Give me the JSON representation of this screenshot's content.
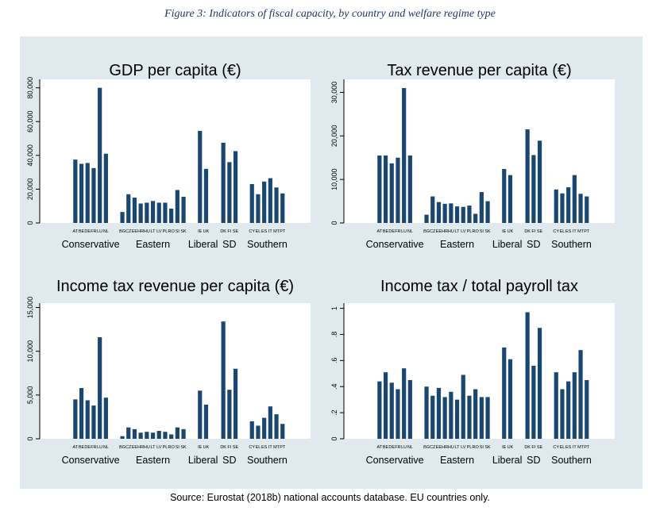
{
  "figure": {
    "title": "Figure 3: Indicators of fiscal capacity, by country and welfare regime type",
    "source": "Source: Eurostat (2018b) national accounts database. EU countries only."
  },
  "colors": {
    "bar": "#1a476f",
    "panel_bg": "#dfe9ee",
    "plot_bg": "#ffffff",
    "title": "#1f3864"
  },
  "chart_data": [
    {
      "type": "bar",
      "title": "GDP per capita (€)",
      "ylim": [
        0,
        85000
      ],
      "yticks": [
        0,
        20000,
        40000,
        60000,
        80000
      ],
      "ytick_labels": [
        "0",
        "20,000",
        "40,000",
        "60,000",
        "80,000"
      ],
      "grid": false,
      "groups": [
        {
          "name": "Conservative",
          "categories": [
            "AT",
            "BE",
            "DE",
            "FR",
            "LU",
            "NL"
          ],
          "values": [
            37500,
            35000,
            35500,
            32500,
            80000,
            41000
          ]
        },
        {
          "name": "Eastern",
          "categories": [
            "BG",
            "CZ",
            "EE",
            "HR",
            "HU",
            "LT",
            "LV",
            "PL",
            "RO",
            "SI",
            "SK"
          ],
          "values": [
            6500,
            17000,
            15000,
            11500,
            12000,
            13000,
            12000,
            12000,
            8500,
            19500,
            15500
          ]
        },
        {
          "name": "Liberal",
          "categories": [
            "IE",
            "UK"
          ],
          "values": [
            54500,
            32000
          ]
        },
        {
          "name": "SD",
          "categories": [
            "DK",
            "FI",
            "SE"
          ],
          "values": [
            47500,
            36000,
            42500
          ]
        },
        {
          "name": "Southern",
          "categories": [
            "CY",
            "EL",
            "ES",
            "IT",
            "MT",
            "PT"
          ],
          "values": [
            23000,
            17000,
            24500,
            26500,
            21000,
            17500
          ]
        }
      ]
    },
    {
      "type": "bar",
      "title": "Tax revenue per capita (€)",
      "ylim": [
        0,
        33000
      ],
      "yticks": [
        0,
        10000,
        20000,
        30000
      ],
      "ytick_labels": [
        "0",
        "10,000",
        "20,000",
        "30,000"
      ],
      "grid": false,
      "groups": [
        {
          "name": "Conservative",
          "categories": [
            "AT",
            "BE",
            "DE",
            "FR",
            "LU",
            "NL"
          ],
          "values": [
            15500,
            15500,
            13700,
            15000,
            31000,
            15500
          ]
        },
        {
          "name": "Eastern",
          "categories": [
            "BG",
            "CZ",
            "EE",
            "HR",
            "HU",
            "LT",
            "LV",
            "PL",
            "RO",
            "SI",
            "SK"
          ],
          "values": [
            1900,
            6100,
            4800,
            4400,
            4500,
            3800,
            3700,
            4000,
            2100,
            7100,
            5000
          ]
        },
        {
          "name": "Liberal",
          "categories": [
            "IE",
            "UK"
          ],
          "values": [
            12400,
            11000
          ]
        },
        {
          "name": "SD",
          "categories": [
            "DK",
            "FI",
            "SE"
          ],
          "values": [
            21500,
            15600,
            18900
          ]
        },
        {
          "name": "Southern",
          "categories": [
            "CY",
            "EL",
            "ES",
            "IT",
            "MT",
            "PT"
          ],
          "values": [
            7700,
            6800,
            8200,
            11000,
            6700,
            6100
          ]
        }
      ]
    },
    {
      "type": "bar",
      "title": "Income tax revenue per capita (€)",
      "ylim": [
        0,
        15500
      ],
      "yticks": [
        0,
        5000,
        10000,
        15000
      ],
      "ytick_labels": [
        "0",
        "5,000",
        "10,000",
        "15,000"
      ],
      "grid": false,
      "groups": [
        {
          "name": "Conservative",
          "categories": [
            "AT",
            "BE",
            "DE",
            "FR",
            "LU",
            "NL"
          ],
          "values": [
            4500,
            5800,
            4400,
            3800,
            11600,
            4700
          ]
        },
        {
          "name": "Eastern",
          "categories": [
            "BG",
            "CZ",
            "EE",
            "HR",
            "HU",
            "LT",
            "LV",
            "PL",
            "RO",
            "SI",
            "SK"
          ],
          "values": [
            300,
            1300,
            1100,
            700,
            800,
            700,
            900,
            800,
            500,
            1300,
            1100
          ]
        },
        {
          "name": "Liberal",
          "categories": [
            "IE",
            "UK"
          ],
          "values": [
            5500,
            3900
          ]
        },
        {
          "name": "SD",
          "categories": [
            "DK",
            "FI",
            "SE"
          ],
          "values": [
            13400,
            5600,
            8000
          ]
        },
        {
          "name": "Southern",
          "categories": [
            "CY",
            "EL",
            "ES",
            "IT",
            "MT",
            "PT"
          ],
          "values": [
            2000,
            1500,
            2400,
            3700,
            2800,
            1700
          ]
        }
      ]
    },
    {
      "type": "bar",
      "title": "Income tax / total payroll tax",
      "ylim": [
        0,
        1.04
      ],
      "yticks": [
        0,
        0.2,
        0.4,
        0.6,
        0.8,
        1
      ],
      "ytick_labels": [
        "0",
        ".2",
        ".4",
        ".6",
        ".8",
        "1"
      ],
      "grid": false,
      "groups": [
        {
          "name": "Conservative",
          "categories": [
            "AT",
            "BE",
            "DE",
            "FR",
            "LU",
            "NL"
          ],
          "values": [
            0.44,
            0.51,
            0.43,
            0.38,
            0.54,
            0.45
          ]
        },
        {
          "name": "Eastern",
          "categories": [
            "BG",
            "CZ",
            "EE",
            "HR",
            "HU",
            "LT",
            "LV",
            "PL",
            "RO",
            "SI",
            "SK"
          ],
          "values": [
            0.4,
            0.33,
            0.39,
            0.32,
            0.36,
            0.3,
            0.49,
            0.33,
            0.38,
            0.32,
            0.32
          ]
        },
        {
          "name": "Liberal",
          "categories": [
            "IE",
            "UK"
          ],
          "values": [
            0.7,
            0.61
          ]
        },
        {
          "name": "SD",
          "categories": [
            "DK",
            "FI",
            "SE"
          ],
          "values": [
            0.97,
            0.56,
            0.85
          ]
        },
        {
          "name": "Southern",
          "categories": [
            "CY",
            "EL",
            "ES",
            "IT",
            "MT",
            "PT"
          ],
          "values": [
            0.51,
            0.38,
            0.44,
            0.51,
            0.68,
            0.45
          ]
        }
      ]
    }
  ]
}
